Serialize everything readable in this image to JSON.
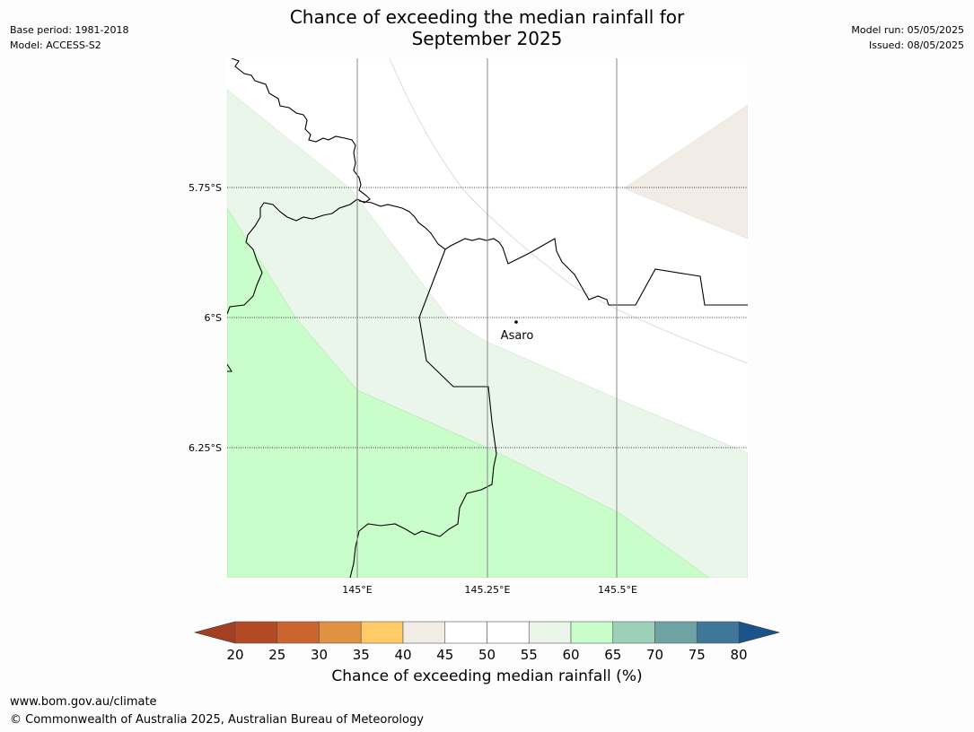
{
  "title": {
    "line1": "Chance of exceeding the median rainfall for",
    "line2": "September 2025"
  },
  "meta": {
    "base_period": "Base period: 1981-2018",
    "model": "Model: ACCESS-S2",
    "model_run": "Model run: 05/05/2025",
    "issued": "Issued: 08/05/2025"
  },
  "map": {
    "lat_labels": [
      "5.75°S",
      "6°S",
      "6.25°S"
    ],
    "lon_labels": [
      "145°E",
      "145.25°E",
      "145.5°E"
    ],
    "place": {
      "name": "Asaro",
      "lon": 145.28,
      "lat": -6.01
    },
    "background_color": "#ffffff",
    "gridline_style": "dotted horizontal, solid grey vertical"
  },
  "colorbar": {
    "ticks": [
      "20",
      "25",
      "30",
      "35",
      "40",
      "45",
      "50",
      "55",
      "60",
      "65",
      "70",
      "75",
      "80"
    ],
    "label": "Chance of exceeding median rainfall (%)",
    "colors": [
      "#a33f22",
      "#b34a23",
      "#cc6430",
      "#e09142",
      "#fecb66",
      "#f1ece5",
      "#ffffff",
      "#ffffff",
      "#eaf6e9",
      "#c9fdc9",
      "#9dd0b8",
      "#6ea3a3",
      "#3e7797",
      "#1a528a"
    ],
    "under_color": "#a33f22",
    "over_color": "#1a528a"
  },
  "footer": {
    "url": "www.bom.gov.au/climate",
    "copyright": "© Commonwealth of Australia 2025, Australian Bureau of Meteorology"
  }
}
